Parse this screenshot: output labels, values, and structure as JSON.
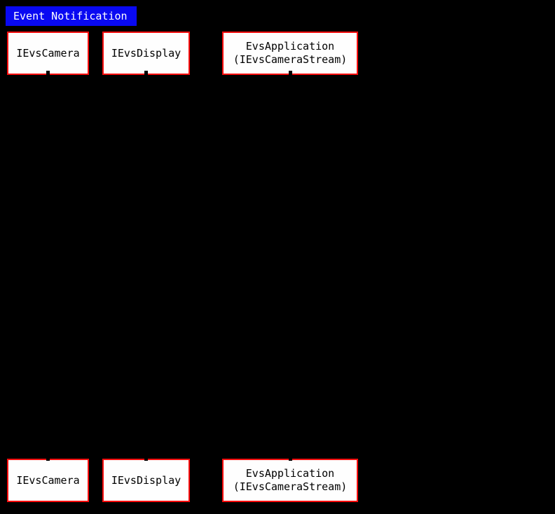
{
  "diagram": {
    "type": "sequence",
    "title": "Event Notification",
    "participants": [
      {
        "id": "IEvsCamera",
        "lines": [
          "IEvsCamera"
        ]
      },
      {
        "id": "IEvsDisplay",
        "lines": [
          "IEvsDisplay"
        ]
      },
      {
        "id": "EvsApplication",
        "lines": [
          "EvsApplication",
          "(IEvsCameraStream)"
        ]
      }
    ],
    "colors": {
      "background": "#000000",
      "title_background": "#0909f2",
      "title_text": "#ffffff",
      "participant_border": "#f90d0d",
      "participant_background": "#fefefe",
      "participant_text": "#000000",
      "lifeline": "#000000"
    }
  }
}
